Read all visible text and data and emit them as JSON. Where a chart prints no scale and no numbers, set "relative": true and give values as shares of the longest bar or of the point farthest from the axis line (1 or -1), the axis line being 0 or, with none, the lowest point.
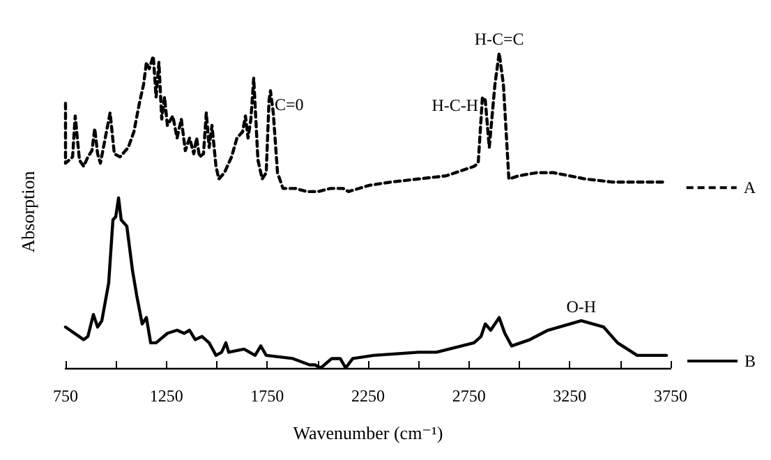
{
  "chart_data": {
    "type": "line",
    "relative": true,
    "xlabel": "Wavenumber (cm⁻¹)",
    "ylabel": "Absorption",
    "x": [
      750,
      750,
      785,
      798,
      819,
      840,
      861,
      881,
      895,
      909,
      923,
      944,
      971,
      992,
      1020,
      1061,
      1089,
      1116,
      1137,
      1151,
      1165,
      1185,
      1199,
      1213,
      1227,
      1241,
      1255,
      1282,
      1303,
      1324,
      1344,
      1365,
      1386,
      1400,
      1414,
      1434,
      1448,
      1462,
      1476,
      1496,
      1510,
      1538,
      1573,
      1600,
      1628,
      1642,
      1655,
      1669,
      1683,
      1704,
      1725,
      1745,
      1759,
      1766,
      1780,
      1801,
      1828,
      1890,
      1946,
      2001,
      2063,
      2126,
      2153,
      2257,
      2360,
      2499,
      2637,
      2775,
      2796,
      2817,
      2831,
      2851,
      2879,
      2900,
      2921,
      2948,
      2996,
      3086,
      3169,
      3328,
      3466,
      3729
    ],
    "xlim": [
      750,
      3750
    ],
    "xticks": [
      750,
      {
        "value": 1000,
        "label": null
      },
      1250,
      {
        "value": 1500,
        "label": null
      },
      1750,
      {
        "value": 2000,
        "label": null
      },
      2250,
      {
        "value": 2500,
        "label": null
      },
      2750,
      {
        "value": 3000,
        "label": null
      },
      3250,
      {
        "value": 3500,
        "label": null
      },
      3750
    ],
    "legend": "right",
    "marker": "none",
    "series": [
      {
        "name": "A",
        "color": "#000000",
        "line_style": "dashed",
        "values": [
          0.84,
          0.65,
          0.67,
          0.8,
          0.66,
          0.64,
          0.67,
          0.69,
          0.76,
          0.68,
          0.65,
          0.72,
          0.81,
          0.68,
          0.67,
          0.7,
          0.75,
          0.84,
          0.9,
          0.97,
          0.95,
          0.99,
          0.86,
          0.97,
          0.79,
          0.86,
          0.77,
          0.8,
          0.73,
          0.79,
          0.69,
          0.73,
          0.68,
          0.73,
          0.67,
          0.68,
          0.81,
          0.7,
          0.77,
          0.64,
          0.6,
          0.62,
          0.67,
          0.73,
          0.75,
          0.8,
          0.73,
          0.79,
          0.92,
          0.66,
          0.6,
          0.62,
          0.85,
          0.88,
          0.81,
          0.62,
          0.57,
          0.57,
          0.56,
          0.56,
          0.57,
          0.57,
          0.56,
          0.58,
          0.59,
          0.6,
          0.61,
          0.64,
          0.65,
          0.86,
          0.85,
          0.7,
          0.9,
          1,
          0.9,
          0.6,
          0.61,
          0.62,
          0.62,
          0.6,
          0.59,
          0.59
        ]
      },
      {
        "name": "B",
        "color": "#000000",
        "line_style": "solid",
        "x": [
          750,
          840,
          861,
          888,
          909,
          930,
          964,
          985,
          999,
          1013,
          1026,
          1054,
          1082,
          1103,
          1130,
          1151,
          1172,
          1199,
          1255,
          1303,
          1338,
          1365,
          1393,
          1427,
          1462,
          1496,
          1524,
          1545,
          1559,
          1635,
          1690,
          1718,
          1745,
          1877,
          1960,
          1987,
          2015,
          2070,
          2112,
          2139,
          2174,
          2278,
          2499,
          2589,
          2775,
          2810,
          2831,
          2858,
          2900,
          2928,
          2962,
          3052,
          3142,
          3307,
          3418,
          3487,
          3584,
          3640,
          3729
        ],
        "values": [
          0.13,
          0.09,
          0.1,
          0.17,
          0.13,
          0.15,
          0.27,
          0.47,
          0.48,
          0.54,
          0.47,
          0.45,
          0.31,
          0.23,
          0.14,
          0.16,
          0.08,
          0.08,
          0.11,
          0.12,
          0.11,
          0.12,
          0.09,
          0.1,
          0.08,
          0.04,
          0.05,
          0.08,
          0.05,
          0.06,
          0.04,
          0.07,
          0.04,
          0.03,
          0.01,
          0.01,
          0,
          0.03,
          0.03,
          0,
          0.03,
          0.04,
          0.05,
          0.05,
          0.08,
          0.1,
          0.14,
          0.12,
          0.16,
          0.11,
          0.07,
          0.09,
          0.12,
          0.15,
          0.13,
          0.08,
          0.04,
          0.04,
          0.04
        ]
      }
    ],
    "annotations": [
      {
        "text": "C=0",
        "x": 1766,
        "y": 0.88
      },
      {
        "text": "H-C-H",
        "x": 2817,
        "y": 0.86
      },
      {
        "text": "H-C=C",
        "x": 2900,
        "y": 1
      },
      {
        "text": "O-H",
        "x": 3307,
        "y": 0.15
      }
    ]
  }
}
